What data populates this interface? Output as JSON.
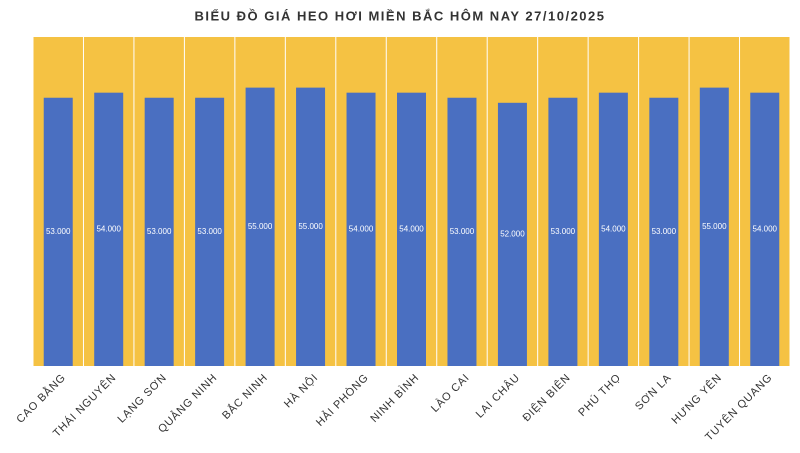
{
  "chart_data": {
    "type": "bar",
    "title": "BIỂU ĐỒ GIÁ HEO HƠI MIỀN BẮC HÔM NAY 27/10/2025",
    "categories": [
      "CAO BẰNG",
      "THÁI NGUYÊN",
      "LẠNG SƠN",
      "QUẢNG NINH",
      "BẮC NINH",
      "HÀ NỘI",
      "HẢI PHÒNG",
      "NINH BÌNH",
      "LÀO CAI",
      "LAI CHÂU",
      "ĐIỆN BIÊN",
      "PHÚ THỌ",
      "SƠN LA",
      "HƯNG YÊN",
      "TUYÊN QUANG"
    ],
    "values": [
      53000,
      54000,
      53000,
      53000,
      55000,
      55000,
      54000,
      54000,
      53000,
      52000,
      53000,
      54000,
      53000,
      55000,
      54000
    ],
    "value_labels": [
      "53.000",
      "54.000",
      "53.000",
      "53.000",
      "55.000",
      "55.000",
      "54.000",
      "54.000",
      "53.000",
      "52.000",
      "53.000",
      "54.000",
      "53.000",
      "55.000",
      "54.000"
    ],
    "color": "#4a6fc1",
    "background_color": "#f5c243",
    "ylim": [
      0,
      65000
    ]
  }
}
